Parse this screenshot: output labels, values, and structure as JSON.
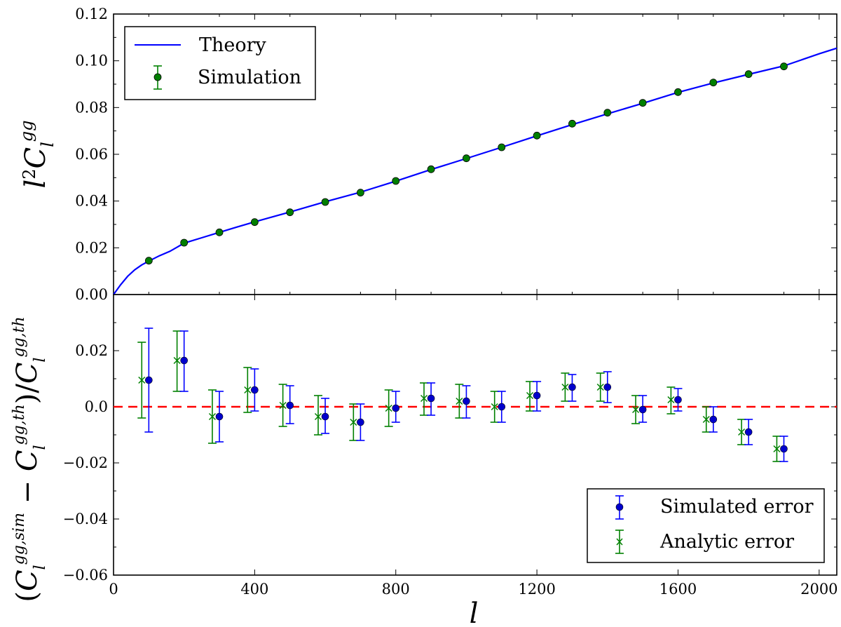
{
  "chart_data": [
    {
      "type": "line",
      "panel": "top",
      "ylabel": "l²C_l^gg",
      "xlim": [
        0,
        2050
      ],
      "ylim": [
        0.0,
        0.12
      ],
      "yticks": [
        "0.00",
        "0.02",
        "0.04",
        "0.06",
        "0.08",
        "0.10",
        "0.12"
      ],
      "legend_position": "top-left",
      "series": [
        {
          "name": "Theory",
          "kind": "line",
          "color": "#0000ff",
          "x": [
            0,
            20,
            40,
            60,
            80,
            100,
            130,
            160,
            200,
            250,
            300,
            350,
            400,
            450,
            500,
            600,
            700,
            800,
            900,
            1000,
            1100,
            1200,
            1300,
            1400,
            1500,
            1600,
            1700,
            1800,
            1900,
            2000,
            2050
          ],
          "y": [
            0.0,
            0.0042,
            0.0078,
            0.0106,
            0.0127,
            0.0143,
            0.0166,
            0.0185,
            0.022,
            0.0243,
            0.0266,
            0.0289,
            0.0311,
            0.0332,
            0.0353,
            0.0397,
            0.0438,
            0.0485,
            0.0535,
            0.0582,
            0.063,
            0.0679,
            0.0727,
            0.0773,
            0.0818,
            0.0865,
            0.0905,
            0.0942,
            0.0978,
            0.103,
            0.1054
          ]
        },
        {
          "name": "Simulation",
          "kind": "errorbar",
          "color": "#007f00",
          "x": [
            100,
            200,
            300,
            400,
            500,
            600,
            700,
            800,
            900,
            1000,
            1100,
            1200,
            1300,
            1400,
            1500,
            1600,
            1700,
            1800,
            1900
          ],
          "y": [
            0.0145,
            0.0222,
            0.0266,
            0.031,
            0.0352,
            0.0396,
            0.0436,
            0.0486,
            0.0536,
            0.0583,
            0.063,
            0.068,
            0.0731,
            0.0778,
            0.082,
            0.0866,
            0.0907,
            0.0943,
            0.0976
          ],
          "err": [
            0.0006,
            0.0006,
            0.0006,
            0.0005,
            0.0005,
            0.0005,
            0.0005,
            0.0005,
            0.0005,
            0.0005,
            0.0005,
            0.0005,
            0.0005,
            0.0005,
            0.0005,
            0.0005,
            0.0005,
            0.0005,
            0.0005
          ]
        }
      ]
    },
    {
      "type": "scatter",
      "panel": "bottom",
      "xlabel": "l",
      "ylabel": "(C_l^gg,sim − C_l^gg,th)/C_l^gg,th",
      "xlim": [
        0,
        2050
      ],
      "ylim": [
        -0.06,
        0.04
      ],
      "xticks": [
        "0",
        "400",
        "800",
        "1200",
        "1600",
        "2000"
      ],
      "yticks": [
        "−0.06",
        "−0.04",
        "−0.02",
        "0.0",
        "0.02"
      ],
      "reference_line": {
        "y": 0.0,
        "color": "#ff0000",
        "style": "dashed"
      },
      "legend_position": "bottom-right",
      "series": [
        {
          "name": "Simulated error",
          "marker": "circle",
          "color": "#0000ff",
          "x": [
            100,
            200,
            300,
            400,
            500,
            600,
            700,
            800,
            900,
            1000,
            1100,
            1200,
            1300,
            1400,
            1500,
            1600,
            1700,
            1800,
            1900
          ],
          "y": [
            0.0095,
            0.0165,
            -0.0035,
            0.006,
            0.0005,
            -0.0035,
            -0.0055,
            -0.0005,
            0.003,
            0.002,
            0.0,
            0.004,
            0.007,
            0.007,
            -0.001,
            0.0025,
            -0.0045,
            -0.009,
            -0.015
          ],
          "err_low": [
            0.0185,
            0.011,
            0.009,
            0.0075,
            0.0065,
            0.006,
            0.0065,
            0.005,
            0.006,
            0.006,
            0.0055,
            0.0055,
            0.005,
            0.0055,
            0.0045,
            0.004,
            0.0045,
            0.0045,
            0.0045
          ],
          "err_high": [
            0.0185,
            0.0105,
            0.009,
            0.0075,
            0.007,
            0.0065,
            0.0065,
            0.006,
            0.0055,
            0.0055,
            0.0055,
            0.005,
            0.0045,
            0.0055,
            0.005,
            0.004,
            0.0045,
            0.0045,
            0.0045
          ]
        },
        {
          "name": "Analytic error",
          "marker": "x",
          "color": "#008000",
          "x": [
            80,
            180,
            280,
            380,
            480,
            580,
            680,
            780,
            880,
            980,
            1080,
            1180,
            1280,
            1380,
            1480,
            1580,
            1680,
            1780,
            1880
          ],
          "y": [
            0.0095,
            0.0165,
            -0.0035,
            0.006,
            0.0005,
            -0.0035,
            -0.0055,
            -0.0005,
            0.003,
            0.002,
            0.0,
            0.004,
            0.007,
            0.007,
            -0.001,
            0.0025,
            -0.0045,
            -0.009,
            -0.015
          ],
          "err_low": [
            0.0135,
            0.011,
            0.0095,
            0.008,
            0.0075,
            0.0065,
            0.0065,
            0.0065,
            0.006,
            0.006,
            0.0055,
            0.0055,
            0.005,
            0.005,
            0.005,
            0.005,
            0.0045,
            0.0045,
            0.0045
          ],
          "err_high": [
            0.0135,
            0.0105,
            0.0095,
            0.008,
            0.0075,
            0.0075,
            0.0065,
            0.0065,
            0.0055,
            0.006,
            0.0055,
            0.005,
            0.005,
            0.005,
            0.005,
            0.0045,
            0.0045,
            0.0045,
            0.0045
          ]
        }
      ]
    }
  ],
  "legend_top": {
    "theory_label": "Theory",
    "simulation_label": "Simulation"
  },
  "legend_bottom": {
    "simulated_label": "Simulated error",
    "analytic_label": "Analytic error"
  }
}
